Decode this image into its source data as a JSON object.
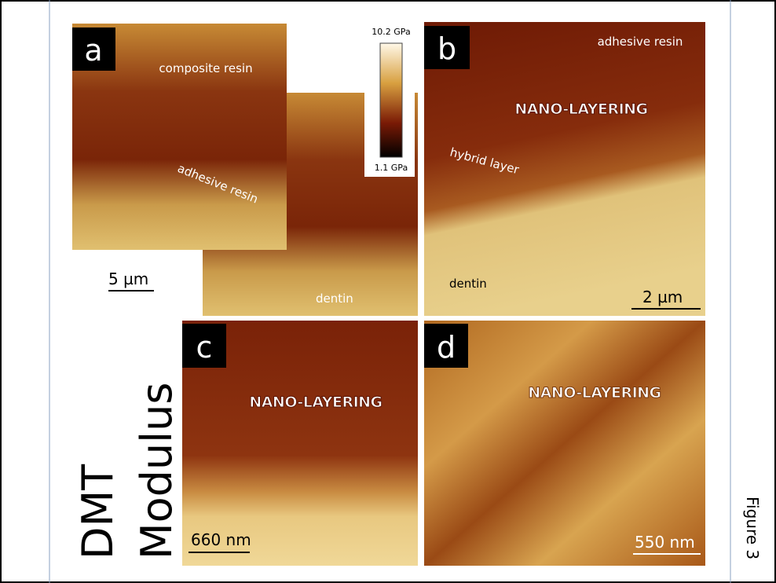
{
  "panels": [
    {
      "label": "a",
      "texts": [
        "composite resin",
        "adhesive resin",
        "dentin"
      ],
      "scale_bar": "5 µm"
    },
    {
      "label": "b",
      "texts": [
        "adhesive resin",
        "NANO-LAYERING",
        "hybrid layer",
        "dentin"
      ],
      "scale_bar": "2 µm"
    },
    {
      "label": "c",
      "texts": [
        "NANO-LAYERING"
      ],
      "scale_bar": "660 nm"
    },
    {
      "label": "d",
      "texts": [
        "NANO-LAYERING"
      ],
      "scale_bar": "550 nm"
    }
  ],
  "colorbar": {
    "max": "10.2 GPa",
    "min": "1.1 GPa"
  },
  "side_label": [
    "DMT",
    "Modulus"
  ],
  "figure_label": "Figure 3"
}
